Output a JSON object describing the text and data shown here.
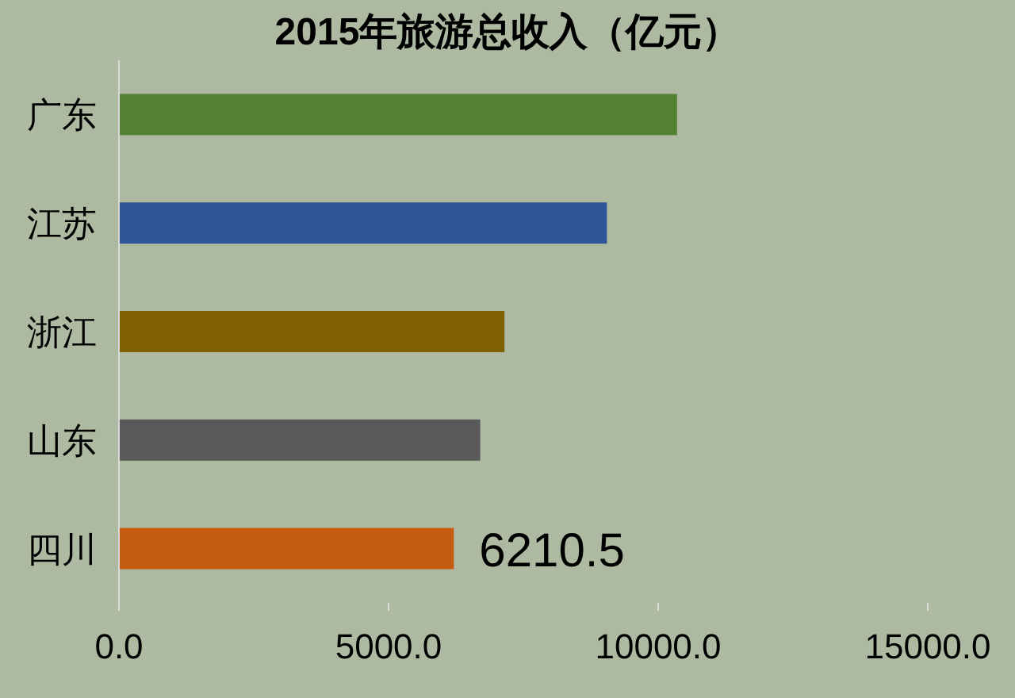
{
  "chart_data": {
    "type": "bar",
    "orientation": "horizontal",
    "title": "2015年旅游总收入（亿元）",
    "categories": [
      "广东",
      "江苏",
      "浙江",
      "山东",
      "四川"
    ],
    "values": [
      10350,
      9050,
      7150,
      6700,
      6210.5
    ],
    "colors": [
      "#548235",
      "#2f5597",
      "#7f6000",
      "#595959",
      "#c55a11"
    ],
    "value_labels": [
      null,
      null,
      null,
      null,
      "6210.5"
    ],
    "xlim": [
      0,
      15000
    ],
    "xticks": [
      {
        "value": 0,
        "label": "0.0"
      },
      {
        "value": 5000,
        "label": "5000.0"
      },
      {
        "value": 10000,
        "label": "10000.0"
      },
      {
        "value": 15000,
        "label": "15000.0"
      }
    ],
    "grid": false
  }
}
